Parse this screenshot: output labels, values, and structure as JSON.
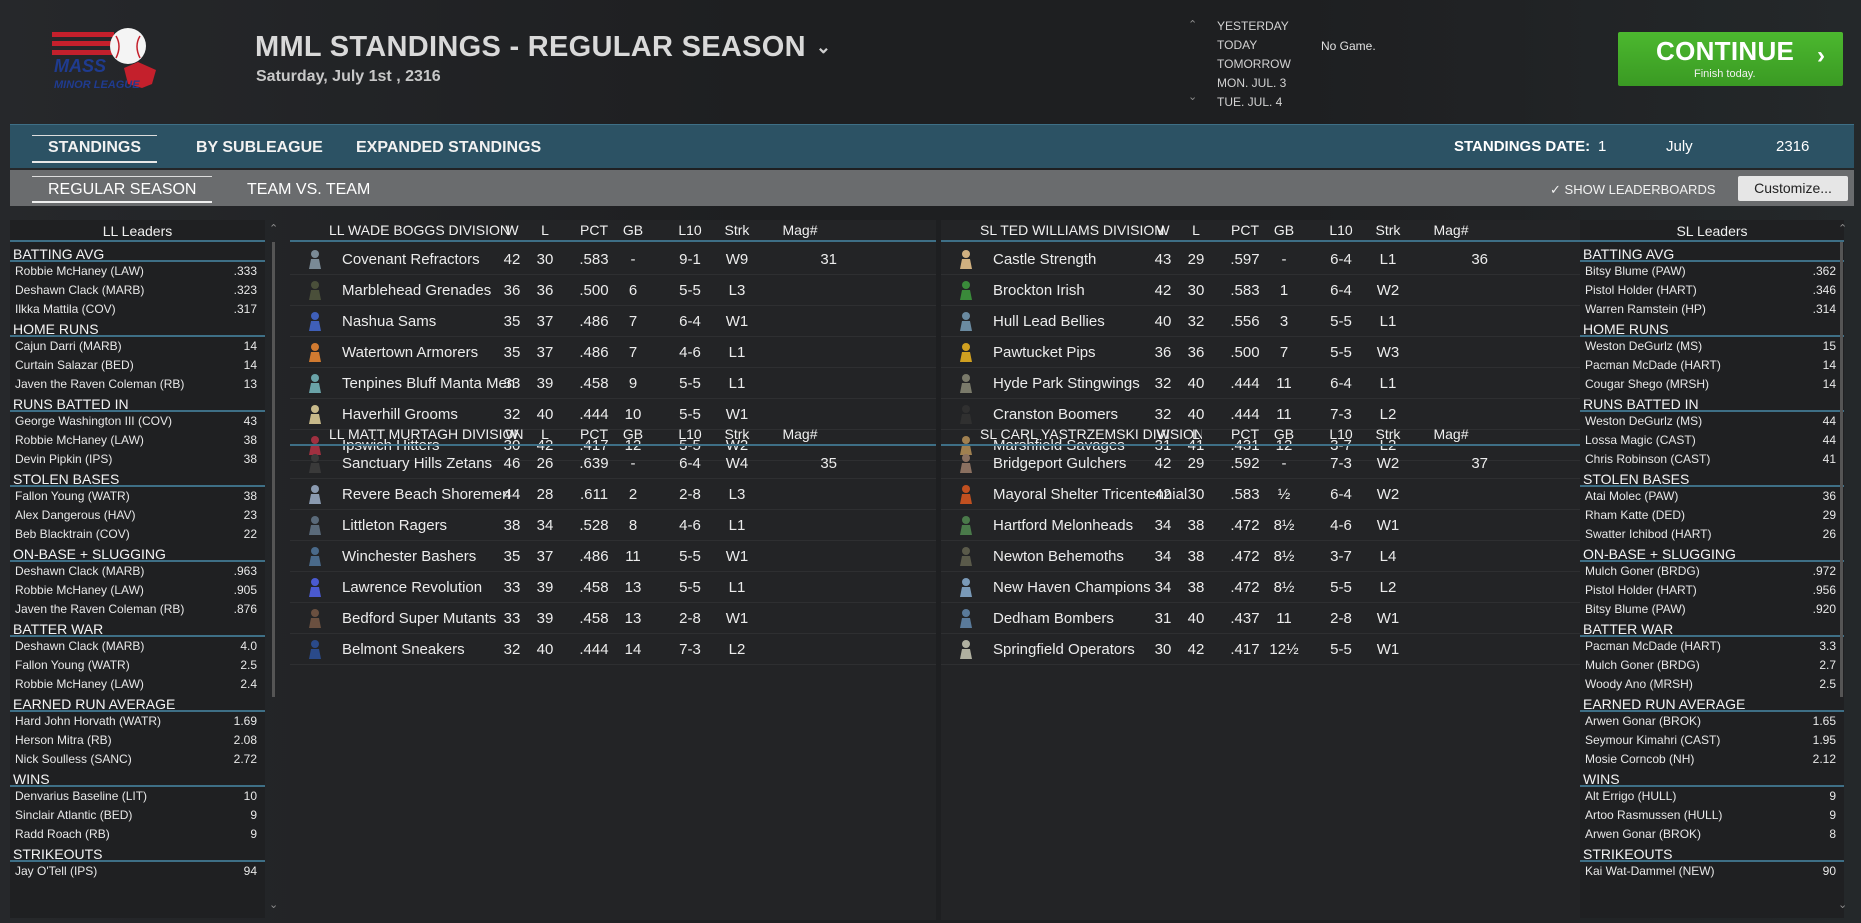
{
  "header": {
    "title": "MML STANDINGS - REGULAR SEASON",
    "date": "Saturday, July 1st , 2316",
    "logo_text": "MASS MINOR LEAGUE",
    "nav_dates": [
      "YESTERDAY",
      "TODAY",
      "TOMORROW",
      "MON. JUL. 3",
      "TUE. JUL. 4"
    ],
    "no_game": "No Game.",
    "continue_label": "CONTINUE",
    "continue_sub": "Finish today."
  },
  "tabs": {
    "primary": [
      "STANDINGS",
      "BY SUBLEAGUE",
      "EXPANDED STANDINGS"
    ],
    "secondary": [
      "REGULAR SEASON",
      "TEAM VS. TEAM"
    ],
    "standings_date_label": "STANDINGS DATE:",
    "standings_day": "1",
    "standings_month": "July",
    "standings_year": "2316",
    "show_leaderboards": "SHOW LEADERBOARDS",
    "customize": "Customize..."
  },
  "columns": {
    "w": "W",
    "l": "L",
    "pct": "PCT",
    "gb": "GB",
    "l10": "L10",
    "strk": "Strk",
    "mag": "Mag#"
  },
  "ll_leaders": {
    "title": "LL Leaders",
    "categories": [
      {
        "name": "BATTING AVG",
        "rows": [
          [
            "Robbie McHaney (LAW)",
            ".333"
          ],
          [
            "Deshawn Clack (MARB)",
            ".323"
          ],
          [
            "Ilkka Mattila (COV)",
            ".317"
          ]
        ]
      },
      {
        "name": "HOME RUNS",
        "rows": [
          [
            "Cajun Darri (MARB)",
            "14"
          ],
          [
            "Curtain Salazar (BED)",
            "14"
          ],
          [
            "Javen the Raven Coleman (RB)",
            "13"
          ]
        ]
      },
      {
        "name": "RUNS BATTED IN",
        "rows": [
          [
            "George Washington III (COV)",
            "43"
          ],
          [
            "Robbie McHaney (LAW)",
            "38"
          ],
          [
            "Devin Pipkin (IPS)",
            "38"
          ]
        ]
      },
      {
        "name": "STOLEN BASES",
        "rows": [
          [
            "Fallon Young (WATR)",
            "38"
          ],
          [
            "Alex Dangerous (HAV)",
            "23"
          ],
          [
            "Beb Blacktrain (COV)",
            "22"
          ]
        ]
      },
      {
        "name": "ON-BASE + SLUGGING",
        "rows": [
          [
            "Deshawn Clack (MARB)",
            ".963"
          ],
          [
            "Robbie McHaney (LAW)",
            ".905"
          ],
          [
            "Javen the Raven Coleman (RB)",
            ".876"
          ]
        ]
      },
      {
        "name": "BATTER WAR",
        "rows": [
          [
            "Deshawn Clack (MARB)",
            "4.0"
          ],
          [
            "Fallon Young (WATR)",
            "2.5"
          ],
          [
            "Robbie McHaney (LAW)",
            "2.4"
          ]
        ]
      },
      {
        "name": "EARNED RUN AVERAGE",
        "rows": [
          [
            "Hard John Horvath (WATR)",
            "1.69"
          ],
          [
            "Herson Mitra (RB)",
            "2.08"
          ],
          [
            "Nick Soulless (SANC)",
            "2.72"
          ]
        ]
      },
      {
        "name": "WINS",
        "rows": [
          [
            "Denvarius Baseline (LIT)",
            "10"
          ],
          [
            "Sinclair Atlantic (BED)",
            "9"
          ],
          [
            "Radd Roach (RB)",
            "9"
          ]
        ]
      },
      {
        "name": "STRIKEOUTS",
        "rows": [
          [
            "Jay O'Tell (IPS)",
            "94"
          ]
        ]
      }
    ]
  },
  "sl_leaders": {
    "title": "SL Leaders",
    "categories": [
      {
        "name": "BATTING AVG",
        "rows": [
          [
            "Bitsy Blume (PAW)",
            ".362"
          ],
          [
            "Pistol Holder (HART)",
            ".346"
          ],
          [
            "Warren Ramstein (HP)",
            ".314"
          ]
        ]
      },
      {
        "name": "HOME RUNS",
        "rows": [
          [
            "Weston DeGurlz (MS)",
            "15"
          ],
          [
            "Pacman McDade (HART)",
            "14"
          ],
          [
            "Cougar Shego (MRSH)",
            "14"
          ]
        ]
      },
      {
        "name": "RUNS BATTED IN",
        "rows": [
          [
            "Weston DeGurlz (MS)",
            "44"
          ],
          [
            "Lossa Magic (CAST)",
            "44"
          ],
          [
            "Chris Robinson (CAST)",
            "41"
          ]
        ]
      },
      {
        "name": "STOLEN BASES",
        "rows": [
          [
            "Atai Molec (PAW)",
            "36"
          ],
          [
            "Rham Katte (DED)",
            "29"
          ],
          [
            "Swatter Ichibod (HART)",
            "26"
          ]
        ]
      },
      {
        "name": "ON-BASE + SLUGGING",
        "rows": [
          [
            "Mulch Goner (BRDG)",
            ".972"
          ],
          [
            "Pistol Holder (HART)",
            ".956"
          ],
          [
            "Bitsy Blume (PAW)",
            ".920"
          ]
        ]
      },
      {
        "name": "BATTER WAR",
        "rows": [
          [
            "Pacman McDade (HART)",
            "3.3"
          ],
          [
            "Mulch Goner (BRDG)",
            "2.7"
          ],
          [
            "Woody Ano (MRSH)",
            "2.5"
          ]
        ]
      },
      {
        "name": "EARNED RUN AVERAGE",
        "rows": [
          [
            "Arwen Gonar (BROK)",
            "1.65"
          ],
          [
            "Seymour Kimahri (CAST)",
            "1.95"
          ],
          [
            "Mosie Corncob (NH)",
            "2.12"
          ]
        ]
      },
      {
        "name": "WINS",
        "rows": [
          [
            "Alt Errigo (HULL)",
            "9"
          ],
          [
            "Artoo Rasmussen (HULL)",
            "9"
          ],
          [
            "Arwen Gonar (BROK)",
            "8"
          ]
        ]
      },
      {
        "name": "STRIKEOUTS",
        "rows": [
          [
            "Kai Wat-Dammel (NEW)",
            "90"
          ]
        ]
      }
    ]
  },
  "divisions": [
    {
      "name": "LL WADE BOGGS DIVISION",
      "teams": [
        {
          "name": "Covenant Refractors",
          "w": "42",
          "l": "30",
          "pct": ".583",
          "gb": "-",
          "l10": "9-1",
          "strk": "W9",
          "mag": "31",
          "color": "#7a8a96"
        },
        {
          "name": "Marblehead Grenades",
          "w": "36",
          "l": "36",
          "pct": ".500",
          "gb": "6",
          "l10": "5-5",
          "strk": "L3",
          "mag": "",
          "color": "#4a4f3a"
        },
        {
          "name": "Nashua Sams",
          "w": "35",
          "l": "37",
          "pct": ".486",
          "gb": "7",
          "l10": "6-4",
          "strk": "W1",
          "mag": "",
          "color": "#3f5fb8"
        },
        {
          "name": "Watertown Armorers",
          "w": "35",
          "l": "37",
          "pct": ".486",
          "gb": "7",
          "l10": "4-6",
          "strk": "L1",
          "mag": "",
          "color": "#d07a30"
        },
        {
          "name": "Tenpines Bluff Manta Men",
          "w": "33",
          "l": "39",
          "pct": ".458",
          "gb": "9",
          "l10": "5-5",
          "strk": "L1",
          "mag": "",
          "color": "#6aa3a8"
        },
        {
          "name": "Haverhill Grooms",
          "w": "32",
          "l": "40",
          "pct": ".444",
          "gb": "10",
          "l10": "5-5",
          "strk": "W1",
          "mag": "",
          "color": "#c7b98a"
        },
        {
          "name": "Ipswich Hitters",
          "w": "30",
          "l": "42",
          "pct": ".417",
          "gb": "12",
          "l10": "5-5",
          "strk": "W2",
          "mag": "",
          "color": "#a03040"
        }
      ]
    },
    {
      "name": "LL MATT MURTAGH DIVISION",
      "teams": [
        {
          "name": "Sanctuary Hills Zetans",
          "w": "46",
          "l": "26",
          "pct": ".639",
          "gb": "-",
          "l10": "6-4",
          "strk": "W4",
          "mag": "35",
          "color": "#3a3a3a"
        },
        {
          "name": "Revere Beach Shoremen",
          "w": "44",
          "l": "28",
          "pct": ".611",
          "gb": "2",
          "l10": "2-8",
          "strk": "L3",
          "mag": "",
          "color": "#8a9ab0"
        },
        {
          "name": "Littleton Ragers",
          "w": "38",
          "l": "34",
          "pct": ".528",
          "gb": "8",
          "l10": "4-6",
          "strk": "L1",
          "mag": "",
          "color": "#5a6a7a"
        },
        {
          "name": "Winchester Bashers",
          "w": "35",
          "l": "37",
          "pct": ".486",
          "gb": "11",
          "l10": "5-5",
          "strk": "W1",
          "mag": "",
          "color": "#4a6a8a"
        },
        {
          "name": "Lawrence Revolution",
          "w": "33",
          "l": "39",
          "pct": ".458",
          "gb": "13",
          "l10": "5-5",
          "strk": "L1",
          "mag": "",
          "color": "#4a5ad0"
        },
        {
          "name": "Bedford Super Mutants",
          "w": "33",
          "l": "39",
          "pct": ".458",
          "gb": "13",
          "l10": "2-8",
          "strk": "W1",
          "mag": "",
          "color": "#6a5040"
        },
        {
          "name": "Belmont Sneakers",
          "w": "32",
          "l": "40",
          "pct": ".444",
          "gb": "14",
          "l10": "7-3",
          "strk": "L2",
          "mag": "",
          "color": "#2a4a8a"
        }
      ]
    },
    {
      "name": "SL TED WILLIAMS DIVISION",
      "teams": [
        {
          "name": "Castle Strength",
          "w": "43",
          "l": "29",
          "pct": ".597",
          "gb": "-",
          "l10": "6-4",
          "strk": "L1",
          "mag": "36",
          "color": "#d0b080"
        },
        {
          "name": "Brockton Irish",
          "w": "42",
          "l": "30",
          "pct": ".583",
          "gb": "1",
          "l10": "6-4",
          "strk": "W2",
          "mag": "",
          "color": "#3a8a3a"
        },
        {
          "name": "Hull Lead Bellies",
          "w": "40",
          "l": "32",
          "pct": ".556",
          "gb": "3",
          "l10": "5-5",
          "strk": "L1",
          "mag": "",
          "color": "#6a8aa0"
        },
        {
          "name": "Pawtucket Pips",
          "w": "36",
          "l": "36",
          "pct": ".500",
          "gb": "7",
          "l10": "5-5",
          "strk": "W3",
          "mag": "",
          "color": "#d0a020"
        },
        {
          "name": "Hyde Park Stingwings",
          "w": "32",
          "l": "40",
          "pct": ".444",
          "gb": "11",
          "l10": "6-4",
          "strk": "L1",
          "mag": "",
          "color": "#7a7a6a"
        },
        {
          "name": "Cranston Boomers",
          "w": "32",
          "l": "40",
          "pct": ".444",
          "gb": "11",
          "l10": "7-3",
          "strk": "L2",
          "mag": "",
          "color": "#303030"
        },
        {
          "name": "Marshfield Savages",
          "w": "31",
          "l": "41",
          "pct": ".431",
          "gb": "12",
          "l10": "3-7",
          "strk": "L2",
          "mag": "",
          "color": "#a08050"
        }
      ]
    },
    {
      "name": "SL CARL YASTRZEMSKI DIVISION",
      "teams": [
        {
          "name": "Bridgeport Gulchers",
          "w": "42",
          "l": "29",
          "pct": ".592",
          "gb": "-",
          "l10": "7-3",
          "strk": "W2",
          "mag": "37",
          "color": "#8a7060"
        },
        {
          "name": "Mayoral Shelter Tricentennial",
          "w": "42",
          "l": "30",
          "pct": ".583",
          "gb": "½",
          "l10": "6-4",
          "strk": "W2",
          "mag": "",
          "color": "#c05020"
        },
        {
          "name": "Hartford Melonheads",
          "w": "34",
          "l": "38",
          "pct": ".472",
          "gb": "8½",
          "l10": "4-6",
          "strk": "W1",
          "mag": "",
          "color": "#4a7a4a"
        },
        {
          "name": "Newton Behemoths",
          "w": "34",
          "l": "38",
          "pct": ".472",
          "gb": "8½",
          "l10": "3-7",
          "strk": "L4",
          "mag": "",
          "color": "#5a5a4a"
        },
        {
          "name": "New Haven Champions",
          "w": "34",
          "l": "38",
          "pct": ".472",
          "gb": "8½",
          "l10": "5-5",
          "strk": "L2",
          "mag": "",
          "color": "#7a9ab8"
        },
        {
          "name": "Dedham Bombers",
          "w": "31",
          "l": "40",
          "pct": ".437",
          "gb": "11",
          "l10": "2-8",
          "strk": "W1",
          "mag": "",
          "color": "#5a7a9a"
        },
        {
          "name": "Springfield Operators",
          "w": "30",
          "l": "42",
          "pct": ".417",
          "gb": "12½",
          "l10": "5-5",
          "strk": "W1",
          "mag": "",
          "color": "#b0b0a0"
        }
      ]
    }
  ]
}
